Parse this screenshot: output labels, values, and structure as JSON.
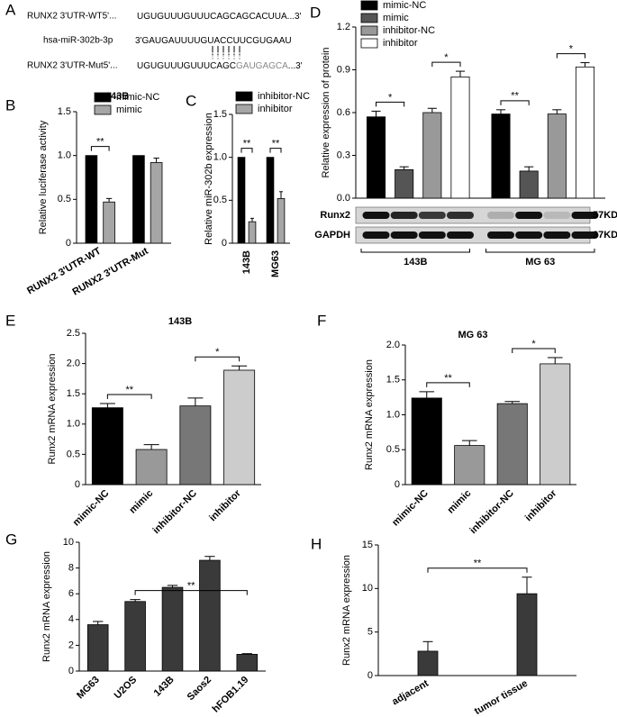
{
  "panel_a": {
    "label": "A",
    "highlight_part": 1,
    "rows": [
      {
        "label": "RUNX2 3'UTR-WT5'...",
        "parts": [
          "UGUGUUUGUUUCAGCAGCACUUA...3'"
        ]
      },
      {
        "label": "hsa-miR-302b-3p",
        "parts": [
          "3'GAUGAUUUUGUACCUUCGUGAAU"
        ]
      },
      {
        "label": "RUNX2 3'UTR-Mut5'...",
        "parts": [
          "UGUGUUUGUUUCAGC",
          "GAUGAGCA",
          "...3'"
        ]
      }
    ]
  },
  "chart_data": [
    {
      "type": "bar",
      "label": "B",
      "title": "143B",
      "y_label": "Relative luciferase activity",
      "categories": [
        "RUNX2 3'UTR-WT",
        "RUNX2 3'UTR-Mut"
      ],
      "series": [
        {
          "name": "mimic-NC",
          "color": "#000000",
          "values": [
            1,
            1
          ]
        },
        {
          "name": "mimic",
          "color": "#a6a6a6",
          "values": [
            0.47,
            0.92
          ],
          "errors": [
            0.04,
            0.05
          ]
        }
      ],
      "ylim": [
        0,
        1.5
      ],
      "yticks": [
        0,
        0.5,
        {
          "value": 1,
          "label": "1.0"
        },
        1.5
      ],
      "legend": "upper right",
      "annotations": [
        {
          "text": "**",
          "category": 0,
          "series": [
            0,
            1
          ]
        }
      ]
    },
    {
      "type": "bar",
      "label": "C",
      "y_label": "Relative miR-302b expression",
      "categories": [
        "143B",
        "MG63"
      ],
      "series": [
        {
          "name": "inhibitor-NC",
          "color": "#000000",
          "values": [
            1,
            1
          ]
        },
        {
          "name": "inhibitor",
          "color": "#a6a6a6",
          "values": [
            0.25,
            0.52
          ],
          "errors": [
            0.04,
            0.08
          ]
        }
      ],
      "ylim": [
        0,
        1.5
      ],
      "yticks": [
        0,
        0.5,
        {
          "value": 1,
          "label": "1.0"
        },
        1.5
      ],
      "legend": "upper right",
      "annotations": [
        {
          "text": "**",
          "category": 0,
          "series": [
            0,
            1
          ]
        },
        {
          "text": "**",
          "category": 1,
          "series": [
            0,
            1
          ]
        }
      ]
    },
    {
      "type": "bar",
      "label": "D",
      "y_label": "Relative expression of protein",
      "categories": [
        "143B",
        "MG 63"
      ],
      "series": [
        {
          "name": "mimic-NC",
          "color": "#000000",
          "values": [
            0.57,
            0.59
          ],
          "errors": [
            0.04,
            0.03
          ]
        },
        {
          "name": "mimic",
          "color": "#555555",
          "values": [
            0.2,
            0.19
          ],
          "errors": [
            0.02,
            0.03
          ]
        },
        {
          "name": "inhibitor-NC",
          "color": "#999999",
          "values": [
            0.6,
            0.59
          ],
          "errors": [
            0.03,
            0.03
          ]
        },
        {
          "name": "inhibitor",
          "color": "#ffffff",
          "values": [
            0.85,
            0.92
          ],
          "errors": [
            0.04,
            0.03
          ]
        }
      ],
      "ylim": [
        0,
        1.2
      ],
      "yticks": [
        {
          "value": 0,
          "label": "0.0"
        },
        0.3,
        0.6,
        0.9,
        1.2
      ],
      "legend": "upper left",
      "annotations": [
        {
          "text": "*",
          "category": 0,
          "series": [
            0,
            1
          ]
        },
        {
          "text": "*",
          "category": 0,
          "series": [
            2,
            3
          ]
        },
        {
          "text": "**",
          "category": 1,
          "series": [
            0,
            1
          ]
        },
        {
          "text": "*",
          "category": 1,
          "series": [
            2,
            3
          ]
        }
      ],
      "blot": [
        {
          "label": "Runx2",
          "size": "57KD"
        },
        {
          "label": "GAPDH",
          "size": "37KD"
        }
      ]
    },
    {
      "type": "bar",
      "label": "E",
      "title": "143B",
      "y_label": "Runx2 mRNA expression",
      "categories": [
        "mimic-NC",
        "mimic",
        "inhibitor-NC",
        "inhibitor"
      ],
      "values": [
        1.27,
        0.58,
        1.3,
        1.89
      ],
      "errors": [
        0.07,
        0.08,
        0.13,
        0.07
      ],
      "colors": [
        "#000000",
        "#999999",
        "#777777",
        "#cccccc"
      ],
      "ylim": [
        0,
        2.5
      ],
      "yticks": [
        0,
        0.5,
        {
          "value": 1,
          "label": "1.0"
        },
        1.5,
        {
          "value": 2,
          "label": "2.0"
        },
        2.5
      ],
      "annotations": [
        {
          "text": "**",
          "categories": [
            0,
            1
          ]
        },
        {
          "text": "*",
          "categories": [
            2,
            3
          ]
        }
      ]
    },
    {
      "type": "bar",
      "label": "F",
      "title": "MG 63",
      "y_label": "Runx2 mRNA expression",
      "categories": [
        "mimic-NC",
        "mimic",
        "inhibitor-NC",
        "inhibitor"
      ],
      "values": [
        1.24,
        0.56,
        1.16,
        1.73
      ],
      "errors": [
        0.09,
        0.07,
        0.03,
        0.09
      ],
      "colors": [
        "#000000",
        "#999999",
        "#777777",
        "#cccccc"
      ],
      "ylim": [
        0,
        2
      ],
      "yticks": [
        0,
        0.5,
        {
          "value": 1,
          "label": "1.0"
        },
        1.5,
        {
          "value": 2,
          "label": "2.0"
        }
      ],
      "annotations": [
        {
          "text": "**",
          "categories": [
            0,
            1
          ]
        },
        {
          "text": "*",
          "categories": [
            2,
            3
          ]
        }
      ]
    },
    {
      "type": "bar",
      "label": "G",
      "y_label": "Runx2 mRNA expression",
      "categories": [
        "MG63",
        "U2OS",
        "143B",
        "Saos2",
        "hFOB1.19"
      ],
      "values": [
        3.6,
        5.4,
        6.5,
        8.6,
        1.3
      ],
      "errors": [
        0.25,
        0.15,
        0.15,
        0.3,
        0.05
      ],
      "color": "#3a3a3a",
      "ylim": [
        0,
        10
      ],
      "yticks": [
        0,
        2,
        4,
        6,
        8,
        10
      ],
      "annotations": [
        {
          "text": "**",
          "categories": [
            1,
            4
          ]
        }
      ]
    },
    {
      "type": "bar",
      "label": "H",
      "y_label": "Runx2 mRNA expression",
      "categories": [
        "adjacent",
        "tumor tissue"
      ],
      "values": [
        2.8,
        9.4
      ],
      "errors": [
        1.1,
        1.9
      ],
      "color": "#3a3a3a",
      "ylim": [
        0,
        15
      ],
      "yticks": [
        0,
        5,
        10,
        15
      ],
      "annotations": [
        {
          "text": "**",
          "categories": [
            0,
            1
          ]
        }
      ]
    }
  ]
}
